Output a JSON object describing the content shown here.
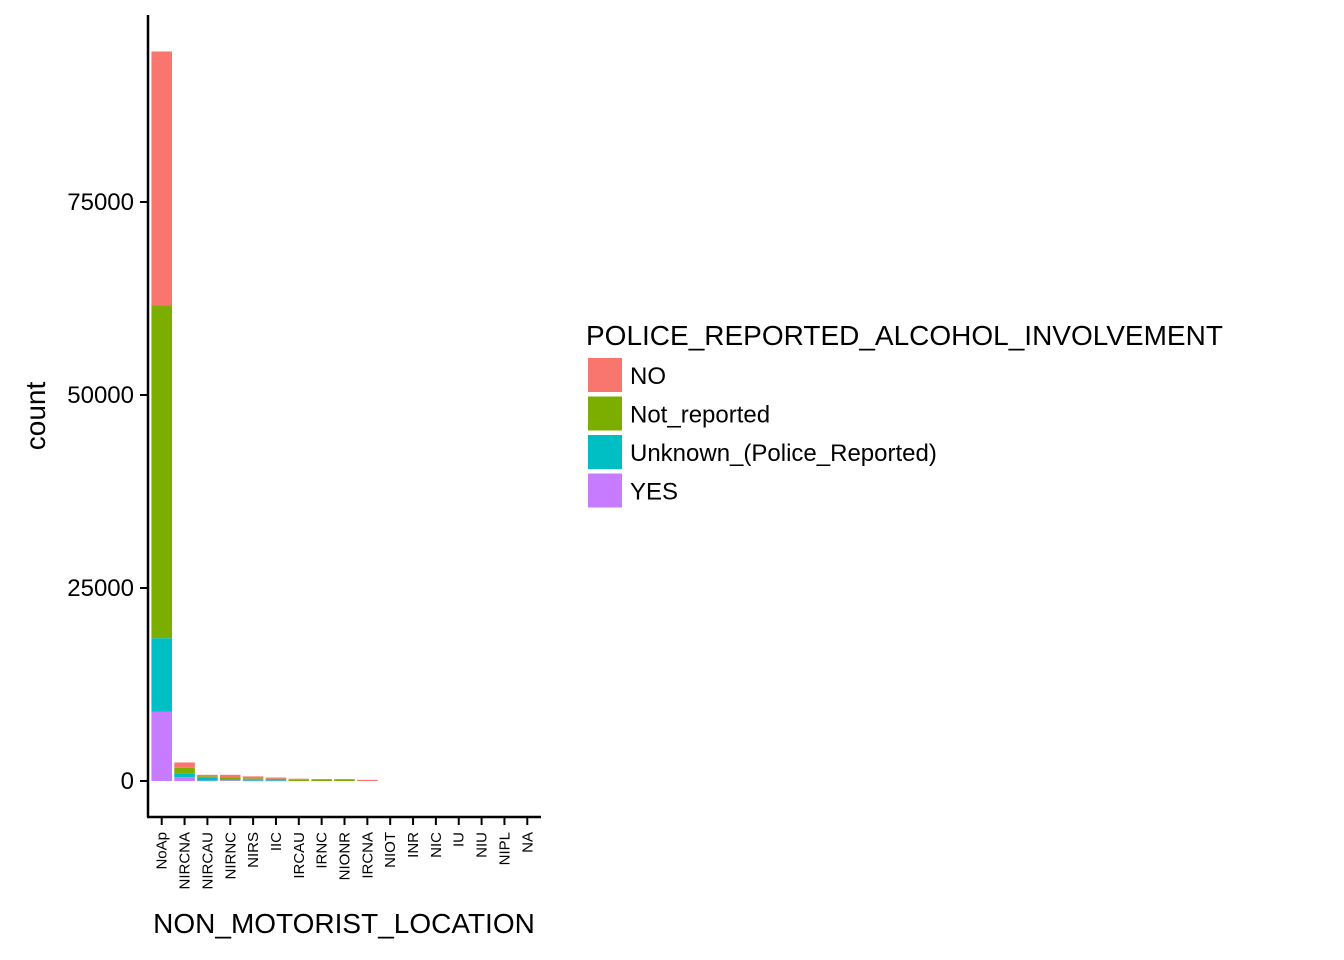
{
  "chart_data": {
    "type": "bar",
    "stacked": true,
    "title": "",
    "xlabel": "NON_MOTORIST_LOCATION",
    "ylabel": "count",
    "ylim": [
      -4700,
      99000
    ],
    "yticks": [
      0,
      25000,
      50000,
      75000
    ],
    "grid": false,
    "legend_position": "right",
    "legend_title": "POLICE_REPORTED_ALCOHOL_INVOLVEMENT",
    "categories": [
      "NoAp",
      "NIRCNA",
      "NIRCAU",
      "NIRNC",
      "NIRS",
      "IIC",
      "IRCAU",
      "IRNC",
      "NIONR",
      "IRCNA",
      "NIOT",
      "INR",
      "NIC",
      "IU",
      "NIU",
      "NIPL",
      "NA"
    ],
    "series": [
      {
        "name": "NO",
        "color": "#F8766D",
        "values": [
          32900,
          700,
          200,
          300,
          250,
          150,
          150,
          120,
          120,
          150,
          0,
          0,
          0,
          0,
          0,
          0,
          0
        ]
      },
      {
        "name": "Not_reported",
        "color": "#7CAE00",
        "values": [
          43100,
          700,
          200,
          300,
          200,
          100,
          150,
          130,
          130,
          0,
          0,
          0,
          0,
          0,
          0,
          0,
          0
        ]
      },
      {
        "name": "Unknown_(Police_Reported)",
        "color": "#00BFC4",
        "values": [
          9500,
          500,
          350,
          100,
          100,
          150,
          0,
          0,
          0,
          0,
          0,
          0,
          0,
          0,
          0,
          0,
          0
        ]
      },
      {
        "name": "YES",
        "color": "#C77CFF",
        "values": [
          9000,
          500,
          50,
          100,
          50,
          50,
          0,
          0,
          0,
          0,
          0,
          0,
          0,
          0,
          0,
          0,
          0
        ]
      }
    ]
  }
}
